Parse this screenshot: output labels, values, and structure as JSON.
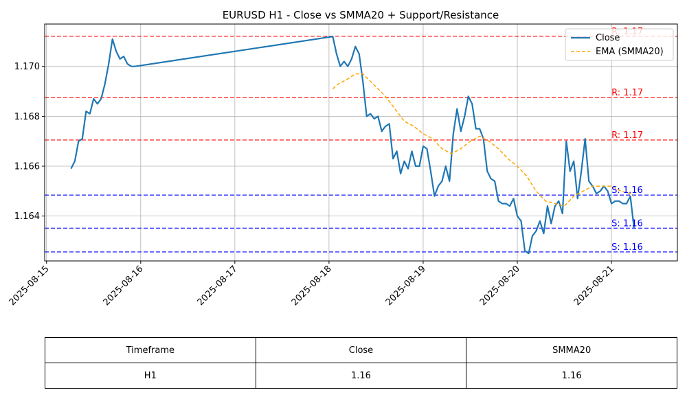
{
  "chart_data": {
    "type": "line",
    "title": "EURUSD H1 - Close vs SMMA20 + Support/Resistance",
    "x_ticks": [
      "2025-08-15",
      "2025-08-16",
      "2025-08-17",
      "2025-08-18",
      "2025-08-19",
      "2025-08-20",
      "2025-08-21"
    ],
    "y_ticks": [
      "1.164",
      "1.166",
      "1.168",
      "1.170"
    ],
    "ylim": [
      1.1622,
      1.1717
    ],
    "xlim_days": [
      -0.02,
      6.7
    ],
    "grid": true,
    "legend_position": "top-right",
    "series": [
      {
        "name": "Close",
        "color": "#1f77b4",
        "style": "solid",
        "points": [
          [
            0.26,
            1.1659
          ],
          [
            0.3,
            1.1662
          ],
          [
            0.34,
            1.167
          ],
          [
            0.38,
            1.1671
          ],
          [
            0.42,
            1.1682
          ],
          [
            0.46,
            1.1681
          ],
          [
            0.5,
            1.1687
          ],
          [
            0.54,
            1.1685
          ],
          [
            0.58,
            1.1687
          ],
          [
            0.62,
            1.1693
          ],
          [
            0.66,
            1.1701
          ],
          [
            0.7,
            1.1711
          ],
          [
            0.74,
            1.1706
          ],
          [
            0.78,
            1.1703
          ],
          [
            0.82,
            1.1704
          ],
          [
            0.86,
            1.1701
          ],
          [
            0.9,
            1.17
          ],
          [
            0.94,
            1.17
          ],
          [
            3.04,
            1.1712
          ],
          [
            3.08,
            1.1705
          ],
          [
            3.12,
            1.17
          ],
          [
            3.16,
            1.1702
          ],
          [
            3.2,
            1.17
          ],
          [
            3.24,
            1.1703
          ],
          [
            3.28,
            1.1708
          ],
          [
            3.32,
            1.1705
          ],
          [
            3.36,
            1.1694
          ],
          [
            3.4,
            1.168
          ],
          [
            3.44,
            1.1681
          ],
          [
            3.48,
            1.1679
          ],
          [
            3.52,
            1.168
          ],
          [
            3.56,
            1.1674
          ],
          [
            3.6,
            1.1676
          ],
          [
            3.64,
            1.1677
          ],
          [
            3.68,
            1.1663
          ],
          [
            3.72,
            1.1666
          ],
          [
            3.76,
            1.1657
          ],
          [
            3.8,
            1.1662
          ],
          [
            3.84,
            1.1659
          ],
          [
            3.88,
            1.1666
          ],
          [
            3.92,
            1.166
          ],
          [
            3.96,
            1.166
          ],
          [
            4.0,
            1.1668
          ],
          [
            4.04,
            1.1667
          ],
          [
            4.08,
            1.1658
          ],
          [
            4.12,
            1.1648
          ],
          [
            4.16,
            1.1652
          ],
          [
            4.2,
            1.1654
          ],
          [
            4.24,
            1.166
          ],
          [
            4.28,
            1.1654
          ],
          [
            4.32,
            1.1673
          ],
          [
            4.36,
            1.1683
          ],
          [
            4.4,
            1.1674
          ],
          [
            4.44,
            1.168
          ],
          [
            4.48,
            1.1688
          ],
          [
            4.52,
            1.1685
          ],
          [
            4.56,
            1.1675
          ],
          [
            4.6,
            1.1675
          ],
          [
            4.64,
            1.1671
          ],
          [
            4.68,
            1.1658
          ],
          [
            4.72,
            1.1655
          ],
          [
            4.76,
            1.1654
          ],
          [
            4.8,
            1.1646
          ],
          [
            4.84,
            1.1645
          ],
          [
            4.88,
            1.1645
          ],
          [
            4.92,
            1.1644
          ],
          [
            4.96,
            1.1647
          ],
          [
            5.0,
            1.164
          ],
          [
            5.04,
            1.1638
          ],
          [
            5.08,
            1.1626
          ],
          [
            5.12,
            1.1625
          ],
          [
            5.16,
            1.1632
          ],
          [
            5.2,
            1.1634
          ],
          [
            5.24,
            1.1638
          ],
          [
            5.28,
            1.1633
          ],
          [
            5.32,
            1.1644
          ],
          [
            5.36,
            1.1637
          ],
          [
            5.4,
            1.1644
          ],
          [
            5.44,
            1.1646
          ],
          [
            5.48,
            1.1641
          ],
          [
            5.52,
            1.167
          ],
          [
            5.56,
            1.1658
          ],
          [
            5.6,
            1.1662
          ],
          [
            5.64,
            1.1647
          ],
          [
            5.68,
            1.1658
          ],
          [
            5.72,
            1.1671
          ],
          [
            5.76,
            1.1654
          ],
          [
            5.8,
            1.1652
          ],
          [
            5.84,
            1.1649
          ],
          [
            5.88,
            1.165
          ],
          [
            5.92,
            1.1652
          ],
          [
            5.96,
            1.165
          ],
          [
            6.0,
            1.1645
          ],
          [
            6.04,
            1.1646
          ],
          [
            6.08,
            1.1646
          ],
          [
            6.12,
            1.1645
          ],
          [
            6.16,
            1.1645
          ],
          [
            6.2,
            1.1648
          ],
          [
            6.24,
            1.1635
          ]
        ]
      },
      {
        "name": "EMA (SMMA20)",
        "color": "#ffa500",
        "style": "dashed",
        "points": [
          [
            3.04,
            1.1691
          ],
          [
            3.1,
            1.1693
          ],
          [
            3.2,
            1.1695
          ],
          [
            3.28,
            1.1697
          ],
          [
            3.36,
            1.1697
          ],
          [
            3.44,
            1.1694
          ],
          [
            3.52,
            1.1691
          ],
          [
            3.6,
            1.1688
          ],
          [
            3.7,
            1.1683
          ],
          [
            3.8,
            1.1678
          ],
          [
            3.9,
            1.1676
          ],
          [
            4.0,
            1.1673
          ],
          [
            4.1,
            1.1671
          ],
          [
            4.2,
            1.1667
          ],
          [
            4.3,
            1.1665
          ],
          [
            4.4,
            1.1667
          ],
          [
            4.5,
            1.167
          ],
          [
            4.6,
            1.1672
          ],
          [
            4.7,
            1.167
          ],
          [
            4.8,
            1.1667
          ],
          [
            4.9,
            1.1663
          ],
          [
            5.0,
            1.166
          ],
          [
            5.1,
            1.1656
          ],
          [
            5.2,
            1.165
          ],
          [
            5.3,
            1.1646
          ],
          [
            5.4,
            1.1645
          ],
          [
            5.5,
            1.1644
          ],
          [
            5.6,
            1.1648
          ],
          [
            5.7,
            1.165
          ],
          [
            5.8,
            1.1652
          ],
          [
            5.9,
            1.1652
          ],
          [
            6.0,
            1.1652
          ],
          [
            6.1,
            1.165
          ],
          [
            6.2,
            1.1649
          ],
          [
            6.24,
            1.1648
          ]
        ]
      }
    ],
    "levels": [
      {
        "kind": "resistance",
        "value": 1.17121,
        "label": "R: 1.17",
        "color": "#ff0000"
      },
      {
        "kind": "resistance",
        "value": 1.16876,
        "label": "R: 1.17",
        "color": "#ff0000"
      },
      {
        "kind": "resistance",
        "value": 1.16705,
        "label": "R: 1.17",
        "color": "#ff0000"
      },
      {
        "kind": "support",
        "value": 1.16484,
        "label": "S: 1.16",
        "color": "#0000ff"
      },
      {
        "kind": "support",
        "value": 1.16351,
        "label": "S: 1.16",
        "color": "#0000ff"
      },
      {
        "kind": "support",
        "value": 1.16256,
        "label": "S: 1.16",
        "color": "#0000ff"
      }
    ]
  },
  "table": {
    "headers": [
      "Timeframe",
      "Close",
      "SMMA20"
    ],
    "row": [
      "H1",
      "1.16",
      "1.16"
    ]
  }
}
